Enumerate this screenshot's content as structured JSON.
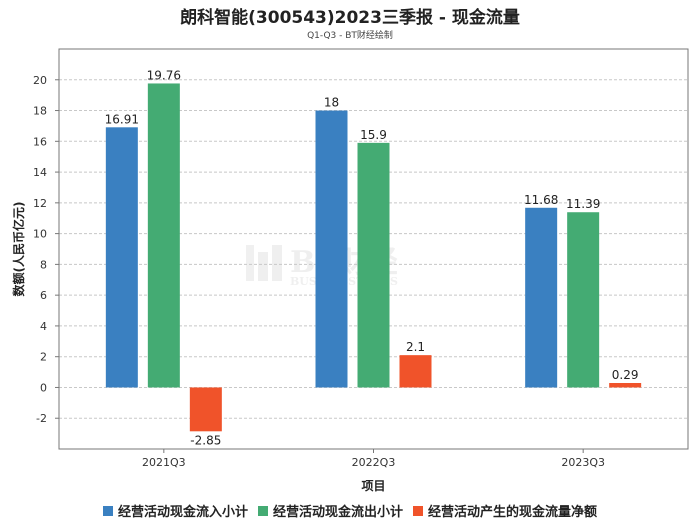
{
  "title": "朗科智能(300543)2023三季报 - 现金流量",
  "subtitle": "Q1-Q3 - BT财经绘制",
  "watermark": {
    "main": "BT财经",
    "sub": "BUSINESSTIMES"
  },
  "chart_data": {
    "type": "bar",
    "xlabel": "项目",
    "ylabel": "数额(人民币亿元)",
    "ylim": [
      -4,
      22
    ],
    "yticks": [
      -2,
      0,
      2,
      4,
      6,
      8,
      10,
      12,
      14,
      16,
      18,
      20
    ],
    "grid": true,
    "legend_position": "bottom",
    "categories": [
      "2021Q3",
      "2022Q3",
      "2023Q3"
    ],
    "series": [
      {
        "name": "经营活动现金流入小计",
        "values": [
          16.91,
          18,
          11.68
        ],
        "labels": [
          "16.91",
          "18",
          "11.68"
        ],
        "color": "#3a80c1"
      },
      {
        "name": "经营活动现金流出小计",
        "values": [
          19.76,
          15.9,
          11.39
        ],
        "labels": [
          "19.76",
          "15.9",
          "11.39"
        ],
        "color": "#44ab73"
      },
      {
        "name": "经营活动产生的现金流量净额",
        "values": [
          -2.85,
          2.1,
          0.29
        ],
        "labels": [
          "-2.85",
          "2.1",
          "0.29"
        ],
        "color": "#f0532a"
      }
    ]
  }
}
